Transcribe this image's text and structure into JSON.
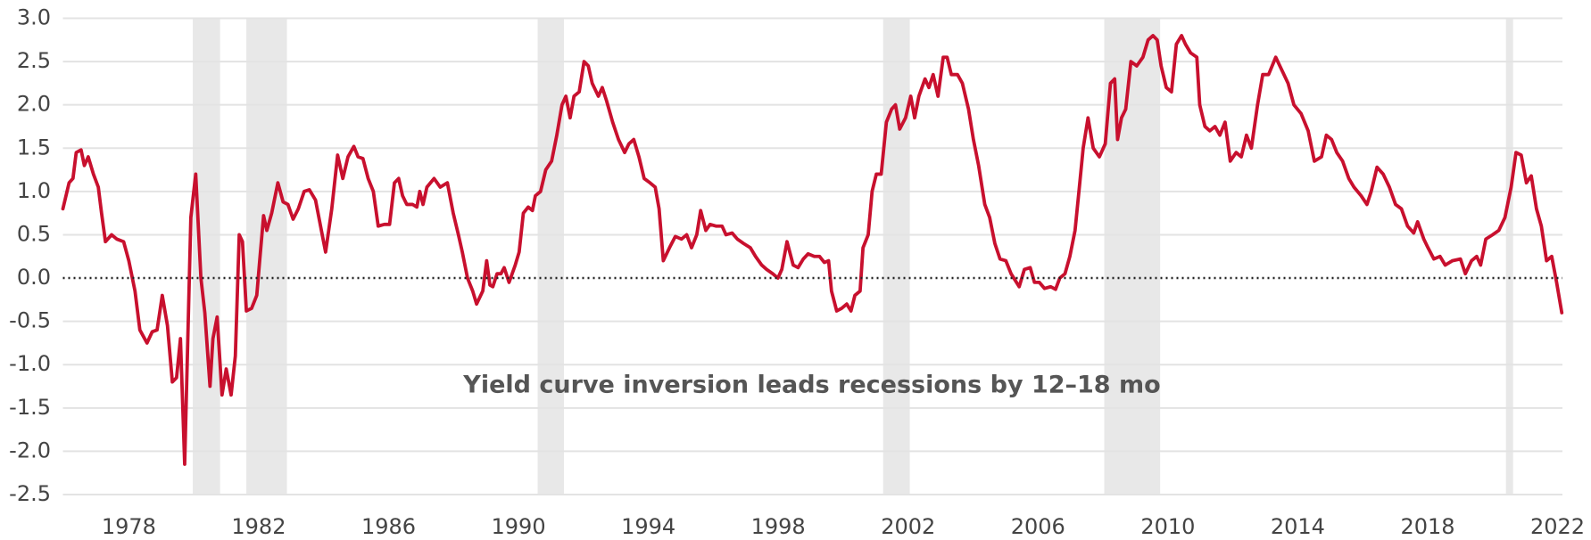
{
  "chart_data": {
    "type": "line",
    "annotation": "Yield curve inversion leads recessions by 12–18 mo",
    "xlim": [
      1975.97,
      2022.15
    ],
    "xticks": [
      1978,
      1982,
      1986,
      1990,
      1994,
      1998,
      2002,
      2006,
      2010,
      2014,
      2018,
      2022
    ],
    "ylim": [
      -2.5,
      3.0
    ],
    "yticks": [
      {
        "value": 3.0,
        "label": "3.0"
      },
      2.5,
      {
        "value": 2.0,
        "label": "2.0"
      },
      1.5,
      {
        "value": 1.0,
        "label": "1.0"
      },
      0.5,
      {
        "value": 0.0,
        "label": "0.0"
      },
      -0.5,
      {
        "value": -1.0,
        "label": "-1.0"
      },
      -1.5,
      {
        "value": -2.0,
        "label": "-2.0"
      },
      -2.5
    ],
    "grid": true,
    "recession_color": "#e8e8e8",
    "recessions": [
      [
        1979.97,
        1980.81
      ],
      [
        1981.62,
        1982.87
      ],
      [
        1990.59,
        1991.4
      ],
      [
        2001.23,
        2002.05
      ],
      [
        2008.04,
        2009.76
      ],
      [
        2020.41,
        2020.63
      ]
    ],
    "x": [
      1975.97,
      1976.16,
      1976.28,
      1976.38,
      1976.53,
      1976.63,
      1976.75,
      1976.91,
      1977.06,
      1977.16,
      1977.28,
      1977.47,
      1977.63,
      1977.84,
      1978.0,
      1978.19,
      1978.34,
      1978.56,
      1978.72,
      1978.87,
      1979.03,
      1979.19,
      1979.34,
      1979.47,
      1979.59,
      1979.72,
      1979.91,
      1980.06,
      1980.22,
      1980.34,
      1980.5,
      1980.59,
      1980.72,
      1980.87,
      1981.0,
      1981.15,
      1981.28,
      1981.4,
      1981.5,
      1981.62,
      1981.78,
      1981.94,
      1982.03,
      1982.15,
      1982.25,
      1982.4,
      1982.59,
      1982.75,
      1982.9,
      1983.06,
      1983.22,
      1983.4,
      1983.56,
      1983.75,
      1983.93,
      1984.06,
      1984.25,
      1984.43,
      1984.59,
      1984.75,
      1984.93,
      1985.06,
      1985.21,
      1985.37,
      1985.53,
      1985.68,
      1985.87,
      1986.03,
      1986.18,
      1986.31,
      1986.43,
      1986.56,
      1986.74,
      1986.87,
      1986.96,
      1987.06,
      1987.18,
      1987.4,
      1987.59,
      1987.81,
      1987.99,
      1988.15,
      1988.27,
      1988.43,
      1988.59,
      1988.71,
      1988.9,
      1989.02,
      1989.12,
      1989.21,
      1989.34,
      1989.46,
      1989.56,
      1989.71,
      1989.9,
      1990.02,
      1990.15,
      1990.3,
      1990.43,
      1990.52,
      1990.68,
      1990.84,
      1991.02,
      1991.18,
      1991.34,
      1991.46,
      1991.59,
      1991.71,
      1991.87,
      1992.02,
      1992.15,
      1992.27,
      1992.46,
      1992.58,
      1992.71,
      1992.9,
      1993.08,
      1993.27,
      1993.4,
      1993.55,
      1993.71,
      1993.87,
      1994.05,
      1994.21,
      1994.33,
      1994.46,
      1994.65,
      1994.83,
      1995.02,
      1995.18,
      1995.33,
      1995.49,
      1995.61,
      1995.77,
      1995.9,
      1996.08,
      1996.27,
      1996.39,
      1996.58,
      1996.74,
      1996.93,
      1997.14,
      1997.3,
      1997.49,
      1997.64,
      1997.83,
      1997.99,
      1998.11,
      1998.27,
      1998.46,
      1998.61,
      1998.77,
      1998.92,
      1999.11,
      1999.27,
      1999.42,
      1999.55,
      1999.64,
      1999.8,
      1999.95,
      2000.11,
      2000.24,
      2000.36,
      2000.52,
      2000.61,
      2000.77,
      2000.89,
      2001.02,
      2001.17,
      2001.33,
      2001.49,
      2001.61,
      2001.74,
      2001.92,
      2002.08,
      2002.2,
      2002.33,
      2002.52,
      2002.64,
      2002.77,
      2002.92,
      2003.08,
      2003.2,
      2003.33,
      2003.52,
      2003.67,
      2003.86,
      2004.01,
      2004.17,
      2004.36,
      2004.51,
      2004.67,
      2004.83,
      2005.01,
      2005.17,
      2005.42,
      2005.58,
      2005.76,
      2005.89,
      2006.04,
      2006.2,
      2006.39,
      2006.54,
      2006.67,
      2006.83,
      2006.98,
      2007.14,
      2007.26,
      2007.39,
      2007.54,
      2007.7,
      2007.89,
      2008.07,
      2008.23,
      2008.36,
      2008.45,
      2008.57,
      2008.7,
      2008.86,
      2009.04,
      2009.23,
      2009.39,
      2009.54,
      2009.67,
      2009.79,
      2009.95,
      2010.11,
      2010.26,
      2010.42,
      2010.54,
      2010.7,
      2010.89,
      2010.98,
      2011.14,
      2011.29,
      2011.45,
      2011.6,
      2011.76,
      2011.92,
      2012.1,
      2012.26,
      2012.42,
      2012.57,
      2012.76,
      2012.92,
      2013.1,
      2013.32,
      2013.51,
      2013.7,
      2013.88,
      2014.1,
      2014.32,
      2014.51,
      2014.73,
      2014.88,
      2015.04,
      2015.2,
      2015.38,
      2015.57,
      2015.73,
      2015.95,
      2016.13,
      2016.26,
      2016.44,
      2016.63,
      2016.82,
      2017.01,
      2017.19,
      2017.38,
      2017.57,
      2017.69,
      2017.88,
      2018.01,
      2018.19,
      2018.38,
      2018.54,
      2018.76,
      2019.01,
      2019.16,
      2019.35,
      2019.51,
      2019.63,
      2019.79,
      2020.0,
      2020.19,
      2020.38,
      2020.57,
      2020.72,
      2020.88,
      2021.04,
      2021.19,
      2021.35,
      2021.5,
      2021.66,
      2021.82,
      2021.97,
      2022.13
    ],
    "series": [
      {
        "color": "#c8102e",
        "values": [
          0.8,
          1.1,
          1.15,
          1.45,
          1.48,
          1.3,
          1.4,
          1.2,
          1.05,
          0.75,
          0.42,
          0.5,
          0.45,
          0.42,
          0.2,
          -0.15,
          -0.6,
          -0.75,
          -0.62,
          -0.6,
          -0.2,
          -0.55,
          -1.2,
          -1.15,
          -0.7,
          -2.15,
          0.7,
          1.2,
          0.0,
          -0.4,
          -1.25,
          -0.7,
          -0.45,
          -1.35,
          -1.05,
          -1.35,
          -0.9,
          0.5,
          0.42,
          -0.38,
          -0.35,
          -0.2,
          0.2,
          0.72,
          0.55,
          0.75,
          1.1,
          0.88,
          0.85,
          0.68,
          0.8,
          1.0,
          1.02,
          0.9,
          0.55,
          0.3,
          0.8,
          1.42,
          1.15,
          1.4,
          1.52,
          1.4,
          1.38,
          1.15,
          1.0,
          0.6,
          0.62,
          0.62,
          1.1,
          1.15,
          0.95,
          0.85,
          0.85,
          0.82,
          1.0,
          0.85,
          1.05,
          1.15,
          1.05,
          1.1,
          0.75,
          0.5,
          0.3,
          0.0,
          -0.15,
          -0.3,
          -0.15,
          0.2,
          -0.08,
          -0.1,
          0.05,
          0.05,
          0.12,
          -0.05,
          0.15,
          0.3,
          0.75,
          0.82,
          0.78,
          0.95,
          1.0,
          1.25,
          1.35,
          1.65,
          2.0,
          2.1,
          1.85,
          2.1,
          2.15,
          2.5,
          2.45,
          2.25,
          2.1,
          2.2,
          2.05,
          1.8,
          1.6,
          1.45,
          1.55,
          1.6,
          1.4,
          1.15,
          1.1,
          1.05,
          0.8,
          0.2,
          0.35,
          0.48,
          0.45,
          0.5,
          0.35,
          0.5,
          0.78,
          0.55,
          0.62,
          0.6,
          0.6,
          0.5,
          0.52,
          0.45,
          0.4,
          0.35,
          0.25,
          0.15,
          0.1,
          0.05,
          0.0,
          0.1,
          0.42,
          0.15,
          0.12,
          0.22,
          0.28,
          0.25,
          0.25,
          0.18,
          0.2,
          -0.15,
          -0.38,
          -0.35,
          -0.3,
          -0.38,
          -0.2,
          -0.15,
          0.35,
          0.5,
          1.0,
          1.2,
          1.2,
          1.8,
          1.95,
          2.0,
          1.72,
          1.85,
          2.1,
          1.85,
          2.1,
          2.3,
          2.2,
          2.35,
          2.1,
          2.55,
          2.55,
          2.35,
          2.35,
          2.25,
          1.95,
          1.6,
          1.3,
          0.85,
          0.7,
          0.4,
          0.22,
          0.2,
          0.05,
          -0.1,
          0.1,
          0.12,
          -0.05,
          -0.05,
          -0.12,
          -0.1,
          -0.13,
          0.0,
          0.05,
          0.25,
          0.55,
          1.0,
          1.5,
          1.85,
          1.5,
          1.4,
          1.55,
          2.25,
          2.3,
          1.6,
          1.85,
          1.95,
          2.5,
          2.45,
          2.55,
          2.75,
          2.8,
          2.75,
          2.45,
          2.2,
          2.15,
          2.7,
          2.8,
          2.7,
          2.6,
          2.55,
          2.0,
          1.75,
          1.7,
          1.75,
          1.65,
          1.8,
          1.35,
          1.45,
          1.4,
          1.65,
          1.5,
          2.0,
          2.35,
          2.35,
          2.55,
          2.4,
          2.25,
          2.0,
          1.9,
          1.7,
          1.35,
          1.4,
          1.65,
          1.6,
          1.45,
          1.35,
          1.15,
          1.05,
          0.95,
          0.85,
          1.0,
          1.28,
          1.2,
          1.05,
          0.85,
          0.8,
          0.6,
          0.52,
          0.65,
          0.45,
          0.35,
          0.22,
          0.25,
          0.15,
          0.2,
          0.22,
          0.05,
          0.2,
          0.25,
          0.15,
          0.45,
          0.5,
          0.55,
          0.7,
          1.05,
          1.45,
          1.42,
          1.1,
          1.18,
          0.8,
          0.6,
          0.2,
          0.25,
          -0.05,
          -0.4
        ]
      }
    ]
  }
}
